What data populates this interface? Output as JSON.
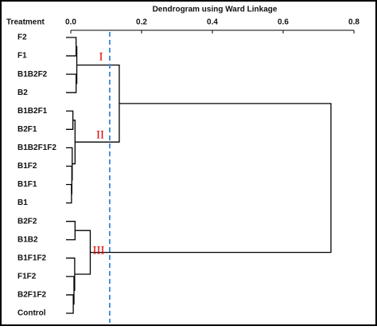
{
  "chart_data": {
    "type": "dendrogram",
    "title": "Dendrogram using Ward Linkage",
    "leaf_header": "Treatment",
    "leaves": [
      "F2",
      "F1",
      "B1B2F2",
      "B2",
      "B1B2F1",
      "B2F1",
      "B1B2F1F2",
      "B1F2",
      "B1F1",
      "B1",
      "B2F2",
      "B1B2",
      "B1F1F2",
      "F1F2",
      "B2F1F2",
      "Control"
    ],
    "merges": [
      {
        "left": 0,
        "right": 1,
        "height": 0.015
      },
      {
        "left": 2,
        "right": 3,
        "height": 0.015
      },
      {
        "left": 16,
        "right": 17,
        "height": 0.017
      },
      {
        "left": 8,
        "right": 9,
        "height": 0.002
      },
      {
        "left": 7,
        "right": 19,
        "height": 0.003
      },
      {
        "left": 6,
        "right": 20,
        "height": 0.004
      },
      {
        "left": 4,
        "right": 5,
        "height": 0.006
      },
      {
        "left": 22,
        "right": 21,
        "height": 0.012
      },
      {
        "left": 18,
        "right": 23,
        "height": 0.137
      },
      {
        "left": 10,
        "right": 11,
        "height": 0.012
      },
      {
        "left": 14,
        "right": 15,
        "height": 0.007
      },
      {
        "left": 13,
        "right": 26,
        "height": 0.009
      },
      {
        "left": 12,
        "right": 27,
        "height": 0.011
      },
      {
        "left": 25,
        "right": 28,
        "height": 0.055
      },
      {
        "left": 24,
        "right": 29,
        "height": 0.735
      }
    ],
    "cluster_labels": [
      "I",
      "II",
      "III"
    ],
    "cut_height": 0.11,
    "cut_color": "#4a90d9",
    "xlim": [
      0,
      0.8
    ],
    "xticks": [
      {
        "value": 0,
        "label": "0.0"
      },
      0.2,
      0.4,
      0.6,
      0.8
    ]
  }
}
